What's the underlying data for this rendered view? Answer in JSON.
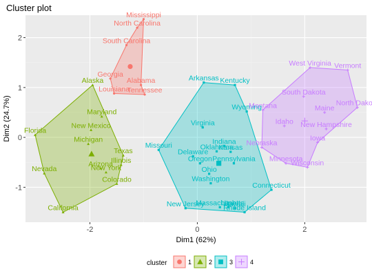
{
  "chart_data": {
    "type": "scatter",
    "title": "Cluster plot",
    "xlabel": "Dim1 (62%)",
    "ylabel": "Dim2 (24.7%)",
    "xlim": [
      -3.2,
      3.15
    ],
    "ylim": [
      -1.7,
      2.45
    ],
    "xticks": [
      -2,
      0,
      2
    ],
    "yticks": [
      -1,
      0,
      1,
      2
    ],
    "grid": true,
    "legend_position": "bottom",
    "legend_title": "cluster",
    "clusters": [
      {
        "name": "1",
        "color": "#F8766D",
        "shape": "circle",
        "centroid": [
          -1.25,
          1.42
        ],
        "hull": [
          "Mississippi",
          "Alabama",
          "Tennessee",
          "Louisiana",
          "Georgia",
          "South Carolina",
          "North Carolina"
        ],
        "points": [
          {
            "label": "Mississippi",
            "x": -1.0,
            "y": 2.37
          },
          {
            "label": "North Carolina",
            "x": -1.12,
            "y": 2.2
          },
          {
            "label": "South Carolina",
            "x": -1.32,
            "y": 1.85
          },
          {
            "label": "Georgia",
            "x": -1.62,
            "y": 1.18
          },
          {
            "label": "Alabama",
            "x": -1.05,
            "y": 1.05
          },
          {
            "label": "Louisiana",
            "x": -1.55,
            "y": 0.88
          },
          {
            "label": "Tennessee",
            "x": -0.98,
            "y": 0.86
          }
        ]
      },
      {
        "name": "2",
        "color": "#7CAE00",
        "shape": "triangle",
        "centroid": [
          -1.97,
          -0.33
        ],
        "hull": [
          "Alaska",
          "Texas",
          "Illinois",
          "Colorado",
          "California",
          "Nevada",
          "Florida"
        ],
        "points": [
          {
            "label": "Alaska",
            "x": -1.95,
            "y": 1.05
          },
          {
            "label": "Maryland",
            "x": -1.78,
            "y": 0.42
          },
          {
            "label": "New Mexico",
            "x": -1.98,
            "y": 0.15
          },
          {
            "label": "Michigan",
            "x": -2.03,
            "y": -0.13
          },
          {
            "label": "Florida",
            "x": -3.02,
            "y": 0.05
          },
          {
            "label": "Texas",
            "x": -1.38,
            "y": -0.36
          },
          {
            "label": "Illinois",
            "x": -1.42,
            "y": -0.55
          },
          {
            "label": "Arizona",
            "x": -1.8,
            "y": -0.62
          },
          {
            "label": "New York",
            "x": -1.7,
            "y": -0.7
          },
          {
            "label": "Colorado",
            "x": -1.5,
            "y": -0.93
          },
          {
            "label": "Nevada",
            "x": -2.85,
            "y": -0.72
          },
          {
            "label": "California",
            "x": -2.5,
            "y": -1.5
          }
        ]
      },
      {
        "name": "3",
        "color": "#00BFC4",
        "shape": "square",
        "centroid": [
          0.4,
          -0.52
        ],
        "hull": [
          "Arkansas",
          "Kentucky",
          "Wyoming",
          "Connecticut",
          "Rhode Island",
          "New Jersey",
          "Missouri"
        ],
        "points": [
          {
            "label": "Arkansas",
            "x": 0.12,
            "y": 1.1
          },
          {
            "label": "Kentucky",
            "x": 0.7,
            "y": 1.05
          },
          {
            "label": "Wyoming",
            "x": 0.92,
            "y": 0.52
          },
          {
            "label": "Virginia",
            "x": 0.1,
            "y": 0.2
          },
          {
            "label": "Indiana",
            "x": 0.5,
            "y": -0.17
          },
          {
            "label": "Oklahoma",
            "x": 0.36,
            "y": -0.28
          },
          {
            "label": "Kansas",
            "x": 0.62,
            "y": -0.29
          },
          {
            "label": "Missouri",
            "x": -0.72,
            "y": -0.25
          },
          {
            "label": "Delaware",
            "x": -0.08,
            "y": -0.38
          },
          {
            "label": "Oregon",
            "x": 0.05,
            "y": -0.52
          },
          {
            "label": "Pennsylvania",
            "x": 0.68,
            "y": -0.52
          },
          {
            "label": "Ohio",
            "x": 0.22,
            "y": -0.73
          },
          {
            "label": "Washington",
            "x": 0.25,
            "y": -0.92
          },
          {
            "label": "Connecticut",
            "x": 1.38,
            "y": -1.05
          },
          {
            "label": "New Jersey",
            "x": -0.22,
            "y": -1.42
          },
          {
            "label": "Massachusetts",
            "x": 0.42,
            "y": -1.4
          },
          {
            "label": "Utah",
            "x": 0.58,
            "y": -1.4
          },
          {
            "label": "Rhode Island",
            "x": 0.88,
            "y": -1.5
          },
          {
            "label": "Hawaii",
            "x": 0.7,
            "y": -1.42
          }
        ]
      },
      {
        "name": "4",
        "color": "#C77CFF",
        "shape": "cross",
        "centroid": [
          2.0,
          0.33
        ],
        "hull": [
          "West Virginia",
          "Vermont",
          "North Dakota",
          "Iowa",
          "Wisconsin",
          "Minnesota",
          "Nebraska",
          "Montana"
        ],
        "points": [
          {
            "label": "West Virginia",
            "x": 2.1,
            "y": 1.4
          },
          {
            "label": "Vermont",
            "x": 2.8,
            "y": 1.35
          },
          {
            "label": "South Dakota",
            "x": 1.98,
            "y": 0.82
          },
          {
            "label": "North Dakota",
            "x": 2.98,
            "y": 0.6
          },
          {
            "label": "Montana",
            "x": 1.22,
            "y": 0.55
          },
          {
            "label": "Maine",
            "x": 2.37,
            "y": 0.5
          },
          {
            "label": "Idaho",
            "x": 1.62,
            "y": 0.23
          },
          {
            "label": "New Hampshire",
            "x": 2.4,
            "y": 0.17
          },
          {
            "label": "Iowa",
            "x": 2.24,
            "y": -0.1
          },
          {
            "label": "Nebraska",
            "x": 1.2,
            "y": -0.2
          },
          {
            "label": "Minnesota",
            "x": 1.65,
            "y": -0.52
          },
          {
            "label": "Wisconsin",
            "x": 2.05,
            "y": -0.6
          }
        ]
      }
    ]
  }
}
